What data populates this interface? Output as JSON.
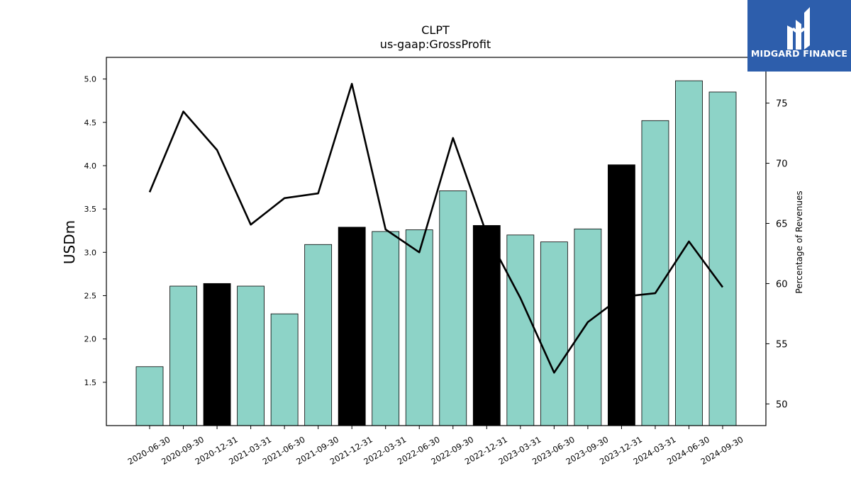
{
  "chart_data": {
    "type": "bar",
    "title": "CLPT",
    "subtitle": "us-gaap:GrossProfit",
    "ylabel": "USDm",
    "y2label": "Percentage of Revenues",
    "ylim": [
      1.0,
      5.25
    ],
    "y2lim": [
      48.2,
      78.8
    ],
    "yticks": [
      1.5,
      2.0,
      2.5,
      3.0,
      3.5,
      4.0,
      4.5,
      5.0
    ],
    "y2ticks": [
      50,
      55,
      60,
      65,
      70,
      75
    ],
    "categories": [
      "2020-06-30",
      "2020-09-30",
      "2020-12-31",
      "2021-03-31",
      "2021-06-30",
      "2021-09-30",
      "2021-12-31",
      "2022-03-31",
      "2022-06-30",
      "2022-09-30",
      "2022-12-31",
      "2023-03-31",
      "2023-06-30",
      "2023-09-30",
      "2023-12-31",
      "2024-03-31",
      "2024-06-30",
      "2024-09-30"
    ],
    "series": [
      {
        "type": "bar",
        "axis": "left",
        "values": [
          1.68,
          2.61,
          2.64,
          2.61,
          2.29,
          3.09,
          3.29,
          3.24,
          3.26,
          3.71,
          3.31,
          3.2,
          3.12,
          3.27,
          4.01,
          4.52,
          4.98,
          4.85
        ],
        "highlight": [
          false,
          false,
          true,
          false,
          false,
          false,
          true,
          false,
          false,
          false,
          true,
          false,
          false,
          false,
          true,
          false,
          false,
          false
        ]
      },
      {
        "type": "line",
        "axis": "right",
        "values": [
          67.6,
          74.3,
          71.1,
          64.9,
          67.1,
          67.5,
          76.6,
          64.5,
          62.6,
          72.1,
          64.1,
          58.8,
          52.6,
          56.8,
          58.9,
          59.2,
          63.5,
          59.7
        ]
      }
    ],
    "colors": {
      "bar": "#8dd3c7",
      "bar_highlight": "#000000",
      "line": "#000000"
    },
    "grid": false
  },
  "logo": {
    "text": "MIDGARD FINANCE"
  }
}
